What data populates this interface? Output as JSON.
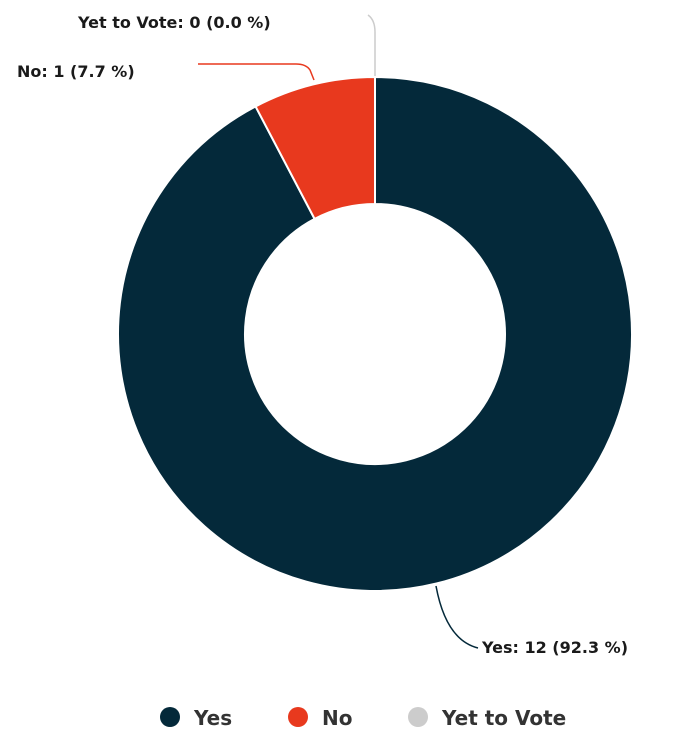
{
  "chart_data": {
    "type": "pie",
    "donut": true,
    "slices": [
      {
        "name": "Yes",
        "value": 12,
        "percent": 92.3,
        "color": "#04293a",
        "label": "Yes: 12 (92.3 %)"
      },
      {
        "name": "No",
        "value": 1,
        "percent": 7.7,
        "color": "#e8391e",
        "label": "No: 1 (7.7 %)"
      },
      {
        "name": "Yet to Vote",
        "value": 0,
        "percent": 0.0,
        "color": "#cccccc",
        "label": "Yet to Vote: 0 (0.0 %)"
      }
    ],
    "legend": {
      "placement": "bottom",
      "entries": [
        "Yes",
        "No",
        "Yet to Vote"
      ]
    }
  }
}
